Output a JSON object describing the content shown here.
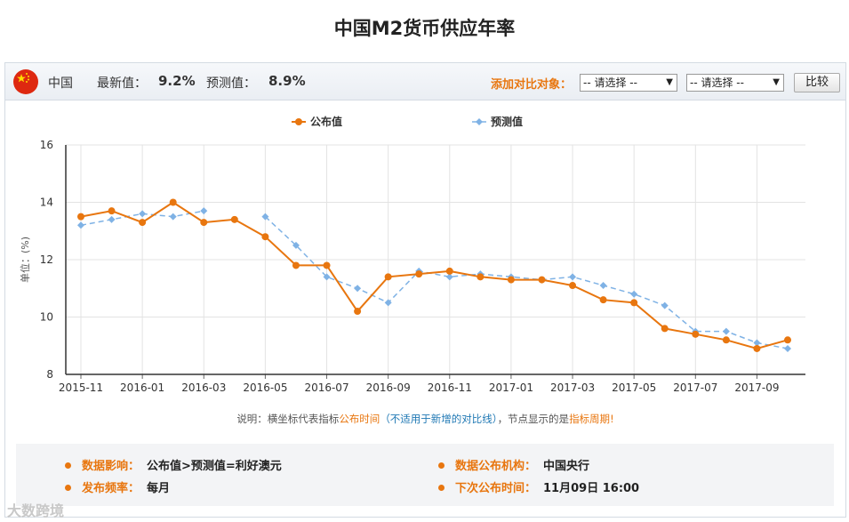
{
  "title": "中国M2货币供应年率",
  "header": {
    "country": "中国",
    "latest_label": "最新值：",
    "latest_value": "9.2%",
    "forecast_label": "预测值：",
    "forecast_value": "8.9%",
    "compare_label": "添加对比对象：",
    "select1": "-- 请选择 --",
    "select2": "-- 请选择 --",
    "compare_button": "比较"
  },
  "chart_data": {
    "type": "line",
    "legend": [
      "公布值",
      "预测值"
    ],
    "legend_position": "top-center",
    "ylabel": "单位：(%)",
    "ylim": [
      8,
      16
    ],
    "yticks": [
      8,
      10,
      12,
      14,
      16
    ],
    "xtick_labels": [
      "2015-11",
      "2016-01",
      "2016-03",
      "2016-05",
      "2016-07",
      "2016-09",
      "2016-11",
      "2017-01",
      "2017-03",
      "2017-05",
      "2017-07",
      "2017-09"
    ],
    "x": [
      "2015-11",
      "2015-12",
      "2016-01",
      "2016-02",
      "2016-03",
      "2016-04",
      "2016-05",
      "2016-06",
      "2016-07",
      "2016-08",
      "2016-09",
      "2016-10",
      "2016-11",
      "2016-12",
      "2017-01",
      "2017-02",
      "2017-03",
      "2017-04",
      "2017-05",
      "2017-06",
      "2017-07",
      "2017-08",
      "2017-09",
      "2017-10"
    ],
    "series": [
      {
        "name": "公布值",
        "color": "#e8760f",
        "style": "solid",
        "values": [
          13.5,
          13.7,
          13.3,
          14.0,
          13.3,
          13.4,
          12.8,
          11.8,
          11.8,
          10.2,
          11.4,
          11.5,
          11.6,
          11.4,
          11.3,
          11.3,
          11.1,
          10.6,
          10.5,
          9.6,
          9.4,
          9.2,
          8.9,
          9.2
        ]
      },
      {
        "name": "预测值",
        "color": "#7fb2e5",
        "style": "dashed",
        "values": [
          13.2,
          13.4,
          13.6,
          13.5,
          13.7,
          null,
          13.5,
          12.5,
          11.4,
          11.0,
          10.5,
          11.6,
          11.4,
          11.5,
          11.4,
          11.3,
          11.4,
          11.1,
          10.8,
          10.4,
          9.5,
          9.5,
          9.1,
          8.9
        ]
      }
    ],
    "grid": true
  },
  "note": {
    "prefix": "说明：横坐标代表指标",
    "time": "公布时间",
    "paren": "（不适用于新增的对比线）",
    "mid": "，节点显示的是",
    "period": "指标周期",
    "end": "!"
  },
  "info": {
    "impact_label": "数据影响：",
    "impact_value": "公布值>预测值=利好澳元",
    "agency_label": "数据公布机构：",
    "agency_value": "中国央行",
    "freq_label": "发布频率：",
    "freq_value": "每月",
    "next_label": "下次公布时间：",
    "next_value": "11月09日 16:00"
  },
  "watermark": "大数跨境"
}
